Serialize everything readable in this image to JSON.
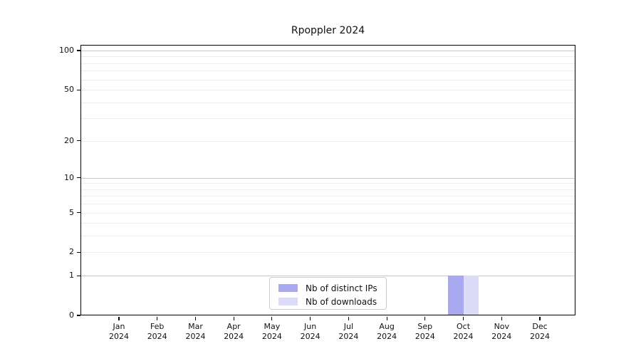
{
  "chart_data": {
    "type": "bar",
    "title": "Rpoppler 2024",
    "categories": [
      {
        "month": "Jan",
        "year": "2024"
      },
      {
        "month": "Feb",
        "year": "2024"
      },
      {
        "month": "Mar",
        "year": "2024"
      },
      {
        "month": "Apr",
        "year": "2024"
      },
      {
        "month": "May",
        "year": "2024"
      },
      {
        "month": "Jun",
        "year": "2024"
      },
      {
        "month": "Jul",
        "year": "2024"
      },
      {
        "month": "Aug",
        "year": "2024"
      },
      {
        "month": "Sep",
        "year": "2024"
      },
      {
        "month": "Oct",
        "year": "2024"
      },
      {
        "month": "Nov",
        "year": "2024"
      },
      {
        "month": "Dec",
        "year": "2024"
      }
    ],
    "series": [
      {
        "name": "Nb of distinct IPs",
        "color": "#a9a9f2",
        "values": [
          0,
          0,
          0,
          0,
          0,
          0,
          0,
          0,
          0,
          1,
          0,
          0
        ]
      },
      {
        "name": "Nb of downloads",
        "color": "#dcdcf8",
        "values": [
          0,
          0,
          0,
          0,
          0,
          0,
          0,
          0,
          0,
          1,
          0,
          0
        ]
      }
    ],
    "xlabel": "",
    "ylabel": "",
    "y_axis": {
      "scale": "log1p",
      "tick_labels": [
        "100",
        "50",
        "20",
        "10",
        "5",
        "2",
        "1",
        "0"
      ],
      "tick_values": [
        100,
        50,
        20,
        10,
        5,
        2,
        1,
        0
      ],
      "range": [
        0,
        112
      ],
      "grid": true
    },
    "legend": {
      "position": "lower center",
      "items": [
        "Nb of distinct IPs",
        "Nb of downloads"
      ]
    }
  }
}
